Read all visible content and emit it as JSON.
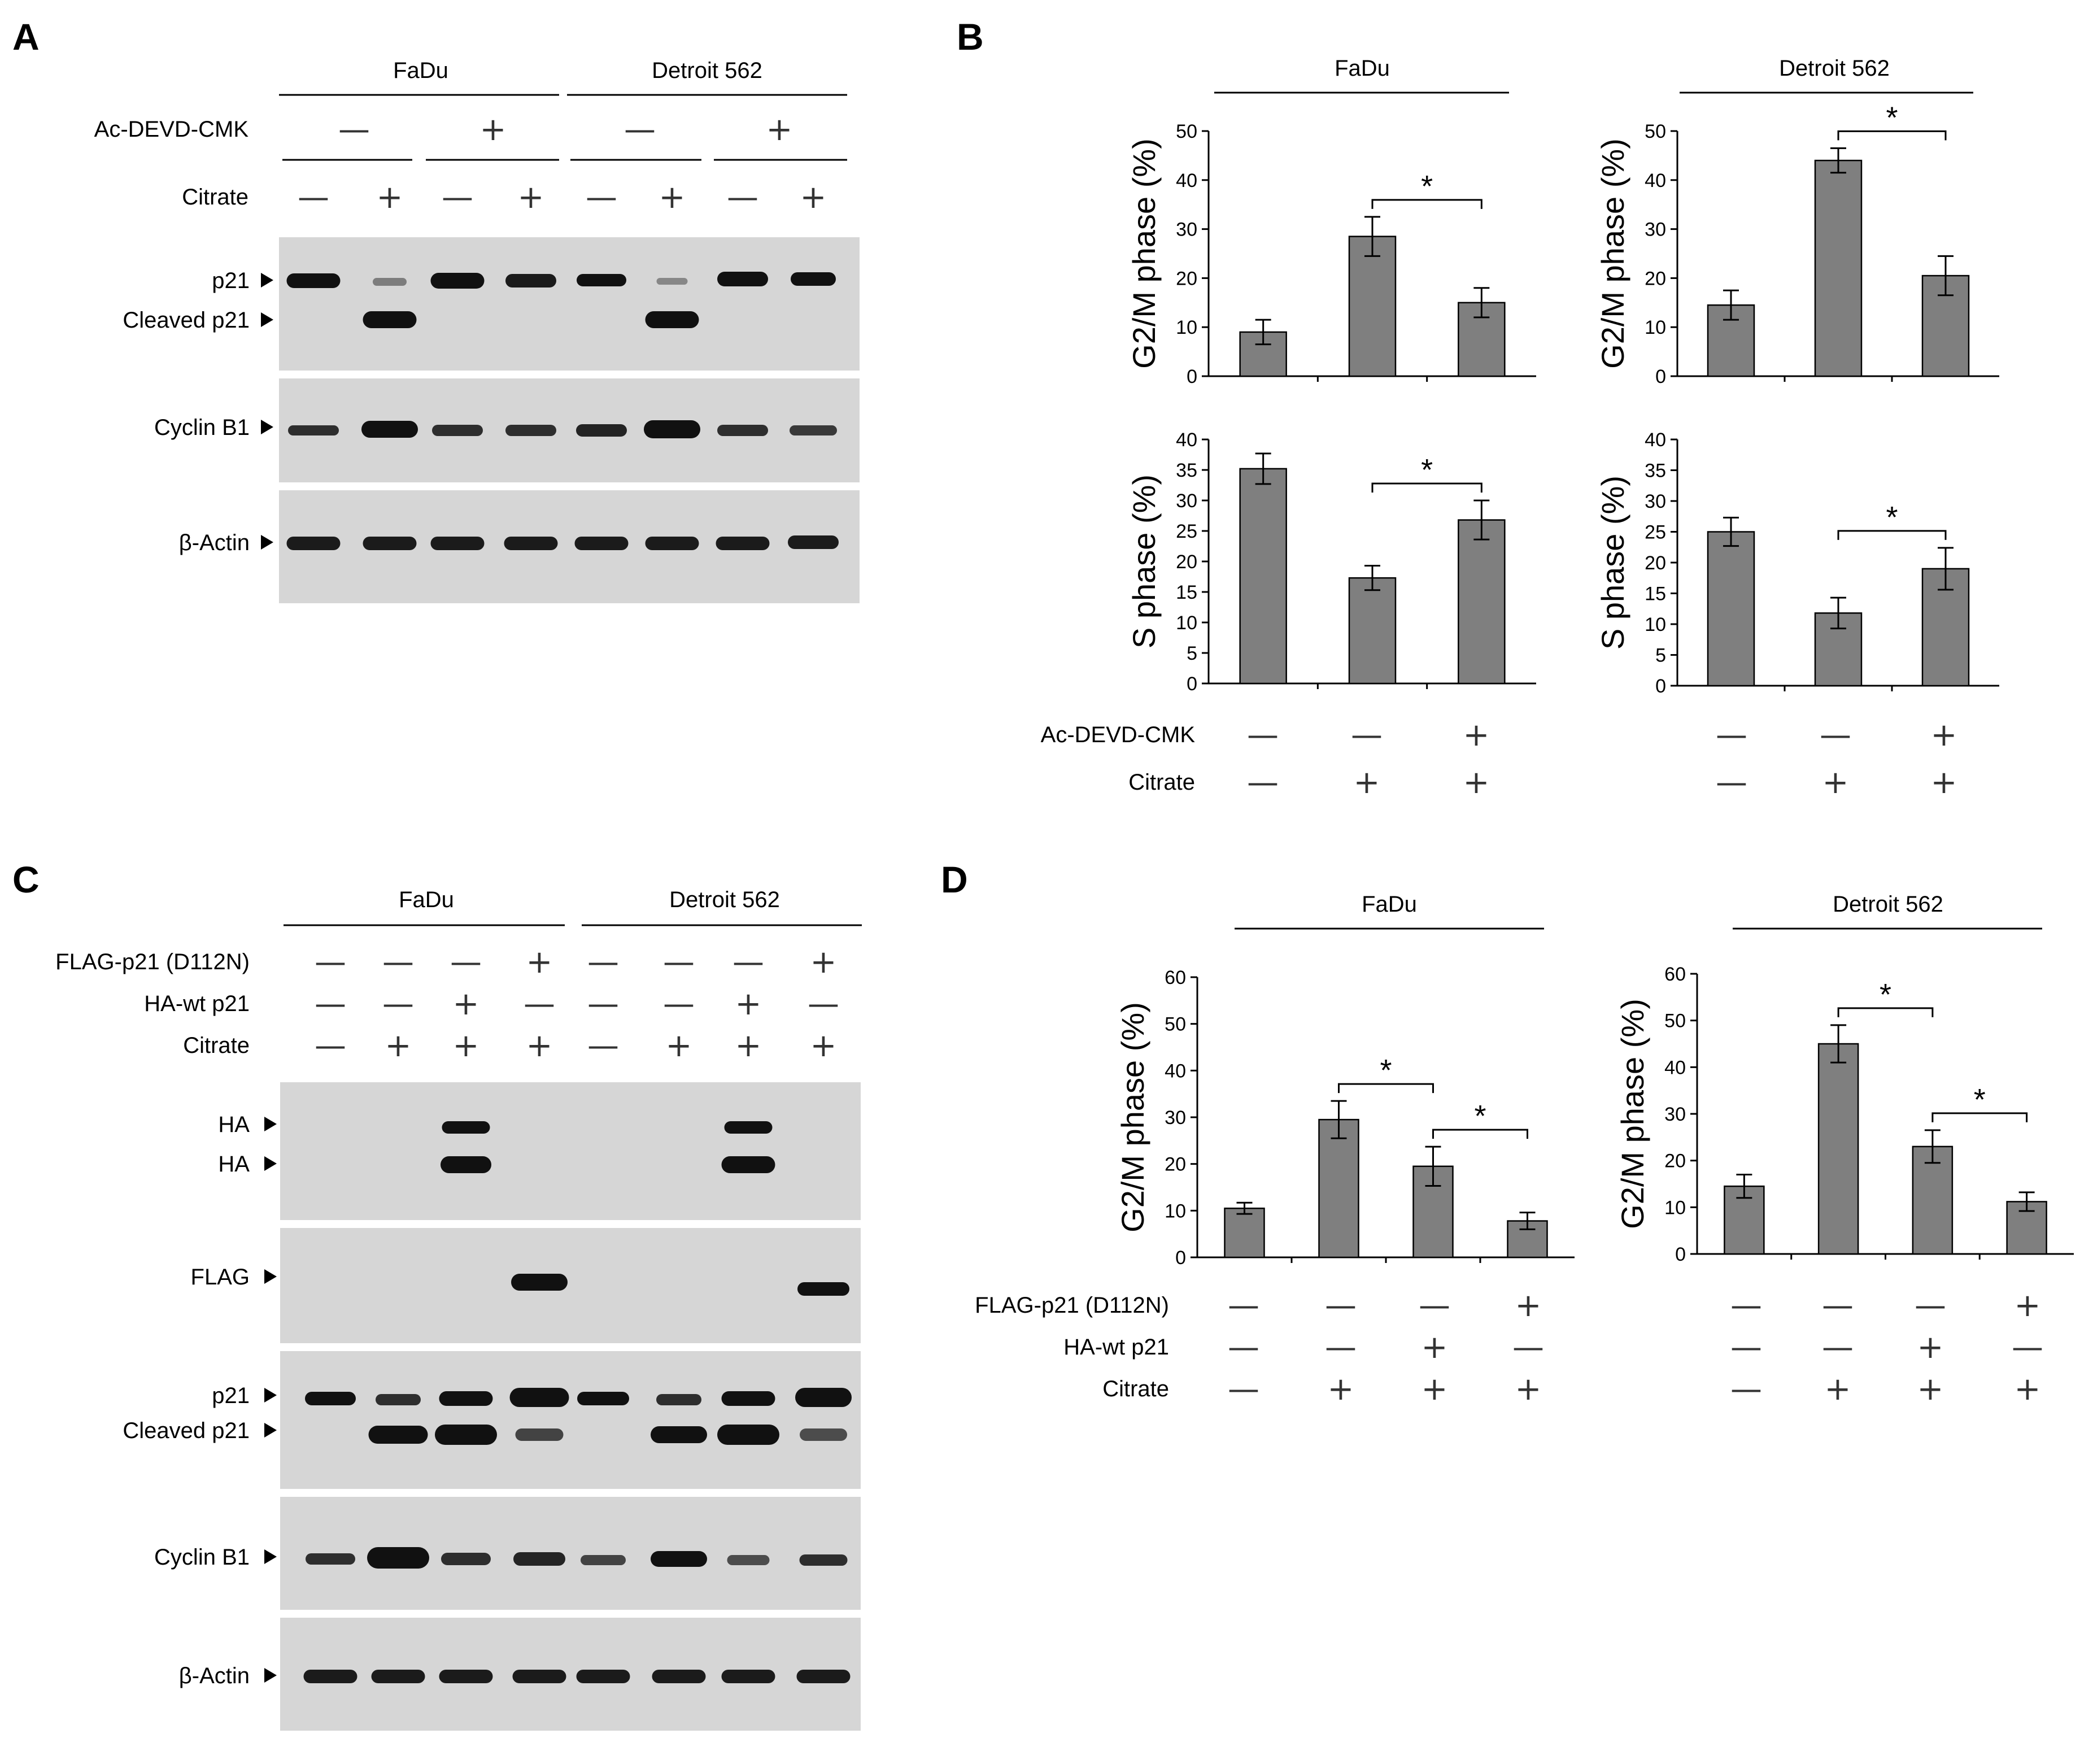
{
  "panels": {
    "A": "A",
    "B": "B",
    "C": "C",
    "D": "D"
  },
  "signs": {
    "minus": "—",
    "plus": "+"
  },
  "star": "*",
  "panelA": {
    "groups": [
      "FaDu",
      "Detroit 562"
    ],
    "conditions": [
      {
        "label": "Ac-DEVD-CMK",
        "values": [
          "—",
          "+",
          "—",
          "+"
        ]
      },
      {
        "label": "Citrate",
        "values": [
          "—",
          "+",
          "—",
          "+",
          "—",
          "+",
          "—",
          "+"
        ]
      }
    ],
    "blots": [
      {
        "labels": [
          "p21",
          "Cleaved p21"
        ]
      },
      {
        "labels": [
          "Cyclin B1"
        ]
      },
      {
        "labels": [
          "β-Actin"
        ]
      }
    ]
  },
  "panelC": {
    "groups": [
      "FaDu",
      "Detroit 562"
    ],
    "conditions": [
      {
        "label": "FLAG-p21 (D112N)",
        "values": [
          "—",
          "—",
          "—",
          "+",
          "—",
          "—",
          "—",
          "+"
        ]
      },
      {
        "label": "HA-wt p21",
        "values": [
          "—",
          "—",
          "+",
          "—",
          "—",
          "—",
          "+",
          "—"
        ]
      },
      {
        "label": "Citrate",
        "values": [
          "—",
          "+",
          "+",
          "+",
          "—",
          "+",
          "+",
          "+"
        ]
      }
    ],
    "blots": [
      {
        "labels": [
          "HA",
          "HA"
        ]
      },
      {
        "labels": [
          "FLAG"
        ]
      },
      {
        "labels": [
          "p21",
          "Cleaved p21"
        ]
      },
      {
        "labels": [
          "Cyclin B1"
        ]
      },
      {
        "labels": [
          "β-Actin"
        ]
      }
    ]
  },
  "panelB": {
    "groups": [
      "FaDu",
      "Detroit 562"
    ],
    "conditions": [
      {
        "label": "Ac-DEVD-CMK",
        "values": [
          "—",
          "—",
          "+"
        ]
      },
      {
        "label": "Citrate",
        "values": [
          "—",
          "+",
          "+"
        ]
      }
    ]
  },
  "panelD": {
    "groups": [
      "FaDu",
      "Detroit 562"
    ],
    "conditions": [
      {
        "label": "FLAG-p21 (D112N)",
        "values": [
          "—",
          "—",
          "—",
          "+"
        ]
      },
      {
        "label": "HA-wt p21",
        "values": [
          "—",
          "—",
          "+",
          "—"
        ]
      },
      {
        "label": "Citrate",
        "values": [
          "—",
          "+",
          "+",
          "+"
        ]
      }
    ]
  },
  "chart_data": [
    {
      "type": "bar",
      "panel": "B",
      "group": "FaDu",
      "ylabel": "G2/M phase (%)",
      "ylim": [
        0,
        50
      ],
      "yticks": [
        0,
        10,
        20,
        30,
        40,
        50
      ],
      "values": [
        9,
        28.5,
        15
      ],
      "errors": [
        2.5,
        4,
        3
      ],
      "significance": [
        [
          1,
          2
        ]
      ]
    },
    {
      "type": "bar",
      "panel": "B",
      "group": "Detroit 562",
      "ylabel": "G2/M phase (%)",
      "ylim": [
        0,
        50
      ],
      "yticks": [
        0,
        10,
        20,
        30,
        40,
        50
      ],
      "values": [
        14.5,
        44,
        20.5
      ],
      "errors": [
        3,
        2.5,
        4
      ],
      "significance": [
        [
          1,
          2
        ]
      ]
    },
    {
      "type": "bar",
      "panel": "B",
      "group": "FaDu",
      "ylabel": "S phase (%)",
      "ylim": [
        0,
        40
      ],
      "yticks": [
        0,
        5,
        10,
        15,
        20,
        25,
        30,
        35,
        40
      ],
      "values": [
        35.2,
        17.3,
        26.8
      ],
      "errors": [
        2.5,
        2,
        3.2
      ],
      "significance": [
        [
          1,
          2
        ]
      ]
    },
    {
      "type": "bar",
      "panel": "B",
      "group": "Detroit 562",
      "ylabel": "S phase (%)",
      "ylim": [
        0,
        40
      ],
      "yticks": [
        0,
        5,
        10,
        15,
        20,
        25,
        30,
        35,
        40
      ],
      "values": [
        25,
        11.8,
        19
      ],
      "errors": [
        2.3,
        2.5,
        3.4
      ],
      "significance": [
        [
          1,
          2
        ]
      ]
    },
    {
      "type": "bar",
      "panel": "D",
      "group": "FaDu",
      "ylabel": "G2/M phase (%)",
      "ylim": [
        0,
        60
      ],
      "yticks": [
        0,
        10,
        20,
        30,
        40,
        50,
        60
      ],
      "values": [
        10.5,
        29.5,
        19.5,
        7.8
      ],
      "errors": [
        1.2,
        4,
        4.2,
        1.8
      ],
      "significance": [
        [
          1,
          2
        ],
        [
          2,
          3
        ]
      ]
    },
    {
      "type": "bar",
      "panel": "D",
      "group": "Detroit 562",
      "ylabel": "G2/M phase (%)",
      "ylim": [
        0,
        60
      ],
      "yticks": [
        0,
        10,
        20,
        30,
        40,
        50,
        60
      ],
      "values": [
        14.5,
        45,
        23,
        11.2
      ],
      "errors": [
        2.5,
        4,
        3.5,
        2
      ],
      "significance": [
        [
          1,
          2
        ],
        [
          2,
          3
        ]
      ]
    }
  ]
}
